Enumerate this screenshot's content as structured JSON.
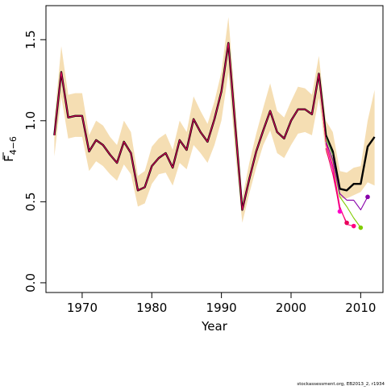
{
  "chart_data": {
    "type": "line",
    "xlabel": "Year",
    "ylabel": "F",
    "ylabel_subscript": "4−6",
    "xlim": [
      1964.8,
      2013.2
    ],
    "ylim": [
      -0.06,
      1.71
    ],
    "x_ticks": [
      1970,
      1980,
      1990,
      2000,
      2010
    ],
    "x_tick_labels": [
      "1970",
      "1980",
      "1990",
      "2000",
      "2010"
    ],
    "y_ticks": [
      0.0,
      0.5,
      1.0,
      1.5
    ],
    "y_tick_labels": [
      "0.0",
      "0.5",
      "1.0",
      "1.5"
    ],
    "grid": false,
    "credit": "stockassessment.org, EB2013_2, r1934",
    "band": {
      "color": "#f5deb3",
      "x": [
        1966,
        1967,
        1968,
        1969,
        1970,
        1971,
        1972,
        1973,
        1974,
        1975,
        1976,
        1977,
        1978,
        1979,
        1980,
        1981,
        1982,
        1983,
        1984,
        1985,
        1986,
        1987,
        1988,
        1989,
        1990,
        1991,
        1992,
        1993,
        1994,
        1995,
        1996,
        1997,
        1998,
        1999,
        2000,
        2001,
        2002,
        2003,
        2004,
        2005,
        2006,
        2007,
        2008,
        2009,
        2010,
        2011,
        2012
      ],
      "upper": [
        1.0,
        1.46,
        1.16,
        1.17,
        1.17,
        0.91,
        1.0,
        0.97,
        0.9,
        0.85,
        1.0,
        0.93,
        0.66,
        0.69,
        0.84,
        0.89,
        0.92,
        0.82,
        1.0,
        0.93,
        1.15,
        1.06,
        0.98,
        1.12,
        1.3,
        1.64,
        1.1,
        0.52,
        0.74,
        0.92,
        1.08,
        1.23,
        1.06,
        1.02,
        1.12,
        1.21,
        1.2,
        1.16,
        1.4,
        1.0,
        0.93,
        0.69,
        0.68,
        0.71,
        0.72,
        1.0,
        1.19
      ],
      "lower": [
        0.78,
        1.15,
        0.89,
        0.9,
        0.9,
        0.69,
        0.75,
        0.72,
        0.67,
        0.63,
        0.73,
        0.67,
        0.47,
        0.49,
        0.61,
        0.67,
        0.68,
        0.6,
        0.74,
        0.7,
        0.85,
        0.8,
        0.74,
        0.85,
        1.0,
        1.3,
        0.8,
        0.37,
        0.55,
        0.71,
        0.85,
        0.94,
        0.8,
        0.77,
        0.85,
        0.92,
        0.93,
        0.91,
        1.14,
        0.8,
        0.71,
        0.52,
        0.52,
        0.54,
        0.56,
        0.62,
        0.6
      ]
    },
    "series": [
      {
        "color": "#000000",
        "x": [
          1966,
          1967,
          1968,
          1969,
          1970,
          1971,
          1972,
          1973,
          1974,
          1975,
          1976,
          1977,
          1978,
          1979,
          1980,
          1981,
          1982,
          1983,
          1984,
          1985,
          1986,
          1987,
          1988,
          1989,
          1990,
          1991,
          1992,
          1993,
          1994,
          1995,
          1996,
          1997,
          1998,
          1999,
          2000,
          2001,
          2002,
          2003,
          2004,
          2005,
          2006,
          2007,
          2008,
          2009,
          2010,
          2011,
          2012
        ],
        "values": [
          0.91,
          1.3,
          1.02,
          1.03,
          1.03,
          0.81,
          0.88,
          0.85,
          0.79,
          0.74,
          0.87,
          0.8,
          0.57,
          0.59,
          0.72,
          0.77,
          0.8,
          0.71,
          0.88,
          0.82,
          1.01,
          0.93,
          0.87,
          1.01,
          1.18,
          1.48,
          0.96,
          0.45,
          0.64,
          0.81,
          0.94,
          1.06,
          0.93,
          0.89,
          1.0,
          1.07,
          1.07,
          1.04,
          1.29,
          0.91,
          0.81,
          0.58,
          0.57,
          0.61,
          0.61,
          0.84,
          0.9
        ],
        "end_point": false
      },
      {
        "color": "#3b7a3b",
        "x": [
          2005,
          2006
        ],
        "values": [
          0.9,
          0.79
        ],
        "end_point": false
      },
      {
        "color": "#ff00c8",
        "x": [
          2005,
          2006,
          2007
        ],
        "values": [
          0.86,
          0.7,
          0.44
        ],
        "end_point": true
      },
      {
        "color": "#e8005a",
        "x": [
          2005,
          2006,
          2007,
          2008
        ],
        "values": [
          0.83,
          0.67,
          0.46,
          0.37
        ],
        "end_point": true
      },
      {
        "color": "#ff0080",
        "x": [
          2005,
          2006,
          2007,
          2008,
          2009
        ],
        "values": [
          0.86,
          0.72,
          0.47,
          0.36,
          0.35
        ],
        "end_point": true
      },
      {
        "color": "#80cc00",
        "x": [
          2005,
          2006,
          2007,
          2008,
          2009,
          2010
        ],
        "values": [
          0.88,
          0.75,
          0.53,
          0.47,
          0.4,
          0.34
        ],
        "end_point": true
      },
      {
        "color": "#8800aa",
        "x": [
          2005,
          2006,
          2007,
          2008,
          2009,
          2010,
          2011
        ],
        "values": [
          0.87,
          0.76,
          0.55,
          0.51,
          0.51,
          0.45,
          0.53
        ],
        "end_point": true
      },
      {
        "color": "#e0005a",
        "x": [
          1966,
          1967,
          1968,
          1969,
          1970,
          1971,
          1972,
          1973,
          1974,
          1975,
          1976,
          1977,
          1978,
          1979,
          1980,
          1981,
          1982,
          1983,
          1984,
          1985,
          1986,
          1987,
          1988,
          1989,
          1990,
          1991,
          1992,
          1993,
          1994,
          1995,
          1996,
          1997,
          1998,
          1999,
          2000,
          2001,
          2002,
          2003,
          2004,
          2005
        ],
        "values": [
          0.91,
          1.3,
          1.02,
          1.03,
          1.03,
          0.81,
          0.88,
          0.85,
          0.79,
          0.74,
          0.87,
          0.8,
          0.57,
          0.59,
          0.72,
          0.77,
          0.8,
          0.71,
          0.88,
          0.82,
          1.01,
          0.93,
          0.87,
          1.01,
          1.18,
          1.48,
          0.96,
          0.45,
          0.64,
          0.81,
          0.94,
          1.06,
          0.93,
          0.89,
          1.0,
          1.07,
          1.07,
          1.04,
          1.29,
          0.87
        ],
        "end_point": false
      }
    ]
  }
}
